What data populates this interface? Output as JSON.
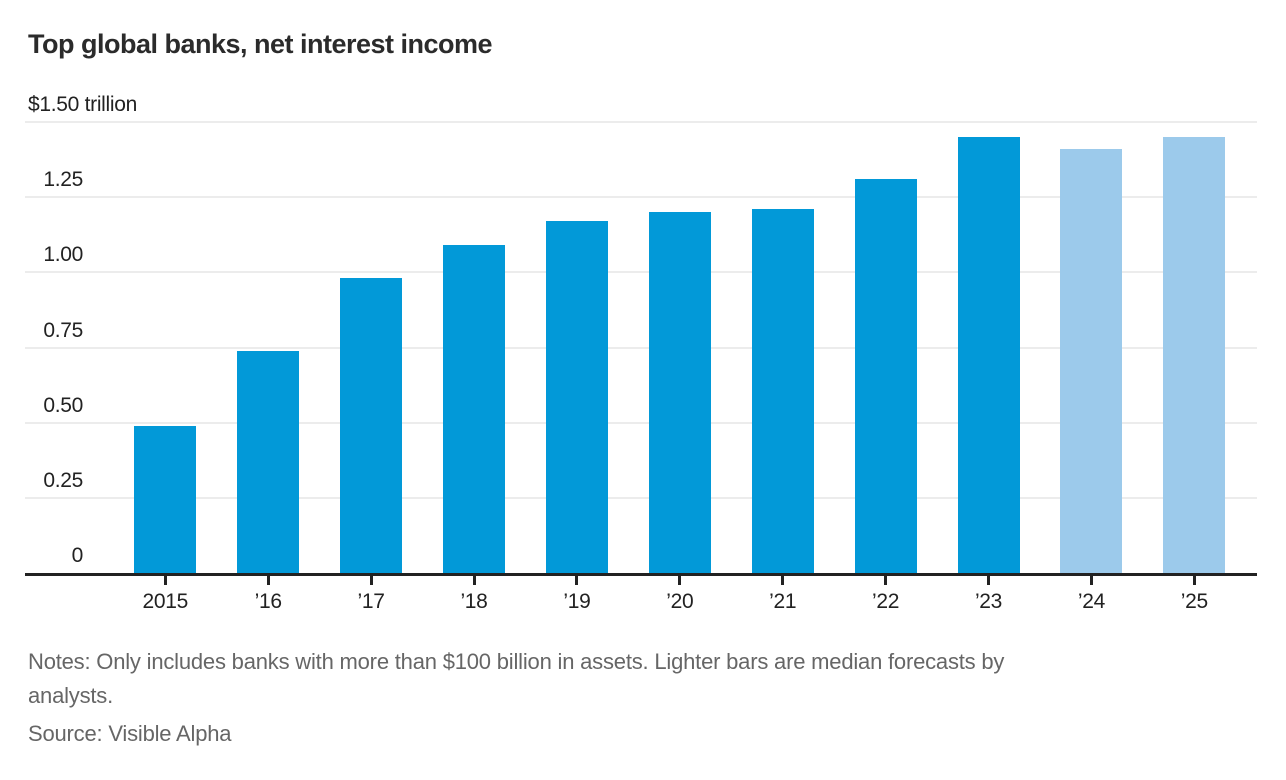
{
  "chart_data": {
    "type": "bar",
    "title": "Top global banks, net interest income",
    "categories": [
      "2015",
      "’16",
      "’17",
      "’18",
      "’19",
      "’20",
      "’21",
      "’22",
      "’23",
      "’24",
      "’25"
    ],
    "values": [
      0.49,
      0.74,
      0.98,
      1.09,
      1.17,
      1.2,
      1.21,
      1.31,
      1.45,
      1.41,
      1.45
    ],
    "is_forecast": [
      false,
      false,
      false,
      false,
      false,
      false,
      false,
      false,
      false,
      true,
      true
    ],
    "series_colors": {
      "actual": "#0299d8",
      "forecast": "#9ccaeb"
    },
    "xlabel": "",
    "ylabel": "trillions of dollars",
    "y_axis": {
      "max": 1.5,
      "ticks": [
        {
          "label": "$1.50 trillion",
          "value": 1.5
        },
        {
          "label": "1.25",
          "value": 1.25
        },
        {
          "label": "1.00",
          "value": 1.0
        },
        {
          "label": "0.75",
          "value": 0.75
        },
        {
          "label": "0.50",
          "value": 0.5
        },
        {
          "label": "0.25",
          "value": 0.25
        },
        {
          "label": "0",
          "value": 0
        }
      ]
    },
    "grid": true,
    "legend": "none"
  },
  "notes": {
    "line1": "Notes: Only includes banks with more than $100 billion in assets. Lighter bars are median forecasts by",
    "line2": "analysts."
  },
  "source": "Source: Visible Alpha"
}
